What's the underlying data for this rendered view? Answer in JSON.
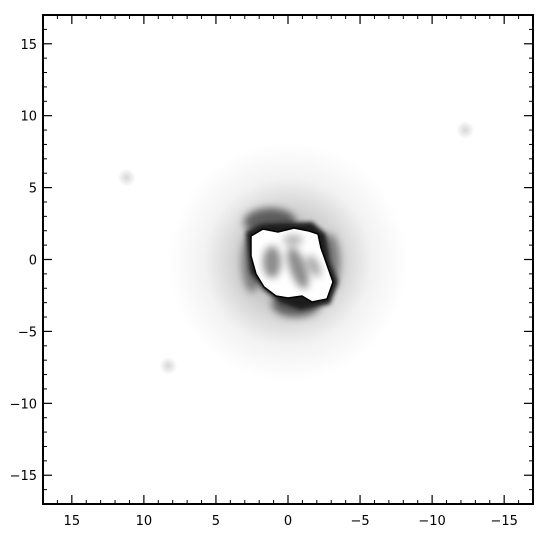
{
  "chart_data": {
    "type": "heatmap",
    "title": "",
    "xlabel": "",
    "ylabel": "",
    "x_reversed": true,
    "xlim": [
      17,
      -17
    ],
    "ylim": [
      -17,
      17
    ],
    "x_ticks": [
      15,
      10,
      5,
      0,
      -5,
      -10,
      -15
    ],
    "x_tick_labels": [
      "15",
      "10",
      "5",
      "0",
      "−5",
      "−10",
      "−15"
    ],
    "y_ticks": [
      15,
      10,
      5,
      0,
      -5,
      -10,
      -15
    ],
    "y_tick_labels": [
      "15",
      "10",
      "5",
      "0",
      "−5",
      "−10",
      "−15"
    ],
    "x_minor_step": 1,
    "y_minor_step": 1,
    "grid": false,
    "colormap": "gray_r",
    "source": {
      "center": [
        0,
        0
      ],
      "saturated_core": "white",
      "rim": "black"
    },
    "faint_spots": [
      {
        "x": 11.2,
        "y": 5.7
      },
      {
        "x": -12.3,
        "y": 9.0
      },
      {
        "x": 8.3,
        "y": -7.4
      }
    ],
    "colors": {
      "frame": "#000000",
      "background": "#ffffff",
      "saturated": "#ffffff"
    }
  }
}
